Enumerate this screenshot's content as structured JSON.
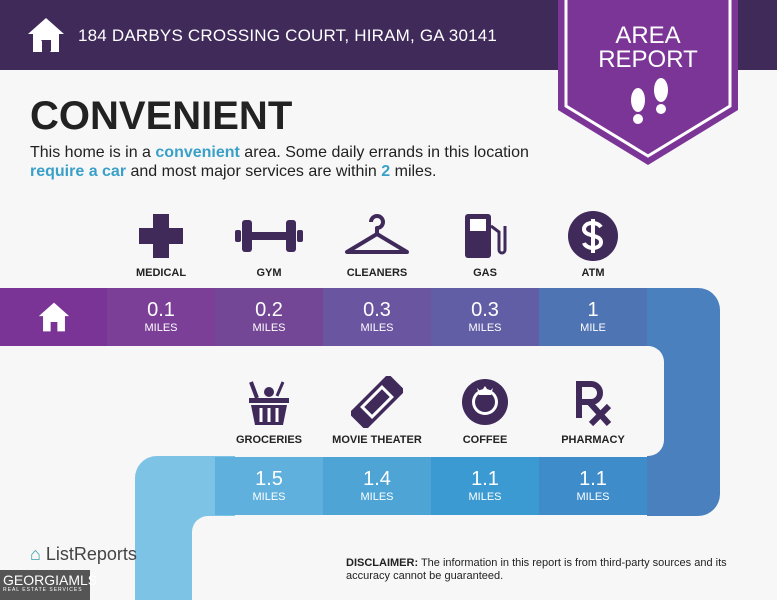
{
  "header": {
    "address": "184 DARBYS CROSSING COURT, HIRAM, GA 30141"
  },
  "badge": {
    "line1": "AREA",
    "line2": "REPORT"
  },
  "title": "CONVENIENT",
  "description": {
    "p1": "This home is in a ",
    "k1": "convenient",
    "p2": " area. Some daily errands in this location ",
    "k2": "require a car",
    "p3": " and most major services are within ",
    "k3": "2",
    "p4": " miles."
  },
  "row1": [
    {
      "label": "MEDICAL",
      "value": "0.1",
      "unit": "MILES",
      "icon": "medical-cross-icon"
    },
    {
      "label": "GYM",
      "value": "0.2",
      "unit": "MILES",
      "icon": "dumbbell-icon"
    },
    {
      "label": "CLEANERS",
      "value": "0.3",
      "unit": "MILES",
      "icon": "hanger-icon"
    },
    {
      "label": "GAS",
      "value": "0.3",
      "unit": "MILES",
      "icon": "gas-pump-icon"
    },
    {
      "label": "ATM",
      "value": "1",
      "unit": "MILE",
      "icon": "dollar-icon"
    }
  ],
  "row2": [
    {
      "label": "GROCERIES",
      "value": "1.5",
      "unit": "MILES",
      "icon": "basket-icon"
    },
    {
      "label": "MOVIE THEATER",
      "value": "1.4",
      "unit": "MILES",
      "icon": "ticket-icon"
    },
    {
      "label": "COFFEE",
      "value": "1.1",
      "unit": "MILES",
      "icon": "coffee-logo-icon"
    },
    {
      "label": "PHARMACY",
      "value": "1.1",
      "unit": "MILES",
      "icon": "rx-icon"
    }
  ],
  "disclaimer": {
    "label": "DISCLAIMER:",
    "text": " The information in this report is from third-party sources and its accuracy cannot be guaranteed."
  },
  "footer": {
    "brand": "ListReports",
    "mls": "GEORGIAMLS",
    "mls_sub": "REAL ESTATE SERVICES"
  },
  "colors": {
    "header": "#3f2a5a",
    "badge": "#7b3596",
    "accent": "#3aa0c8",
    "icon": "#3f2a5a"
  }
}
